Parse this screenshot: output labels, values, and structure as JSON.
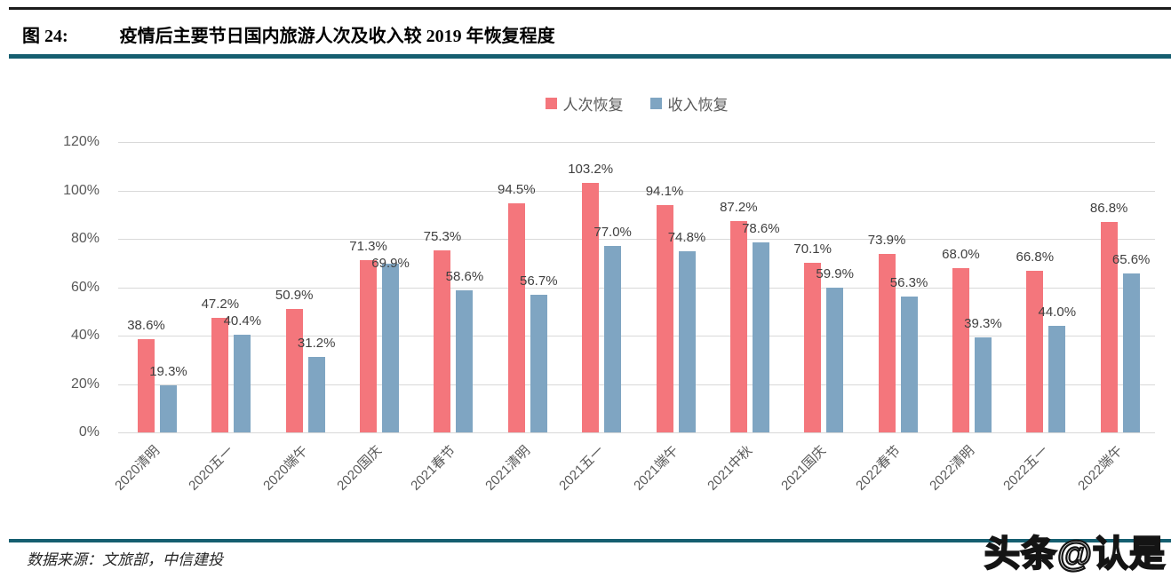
{
  "figure": {
    "label": "图 24:",
    "title": "疫情后主要节日国内旅游人次及收入较 2019 年恢复程度"
  },
  "source_text": "数据来源：文旅部，中信建投",
  "watermark_text": "头条@认是",
  "colors": {
    "series_passenger": "#f4767c",
    "series_revenue": "#7fa5c2",
    "rule_teal": "#155e70",
    "rule_top": "#1c1c1c",
    "grid": "#d9d9d9",
    "value_label": "#404040",
    "axis_label": "#595959"
  },
  "chart_data": {
    "type": "bar",
    "title": "疫情后主要节日国内旅游人次及收入较 2019 年恢复程度",
    "categories": [
      "2020清明",
      "2020五一",
      "2020端午",
      "2020国庆",
      "2021春节",
      "2021清明",
      "2021五一",
      "2021端午",
      "2021中秋",
      "2021国庆",
      "2022春节",
      "2022清明",
      "2022五一",
      "2022端午"
    ],
    "series": [
      {
        "name": "人次恢复",
        "color_key": "series_passenger",
        "values": [
          38.6,
          47.2,
          50.9,
          71.3,
          75.3,
          94.5,
          103.2,
          94.1,
          87.2,
          70.1,
          73.9,
          68.0,
          66.8,
          86.8
        ]
      },
      {
        "name": "收入恢复",
        "color_key": "series_revenue",
        "values": [
          19.3,
          40.4,
          31.2,
          69.9,
          58.6,
          56.7,
          77.0,
          74.8,
          78.6,
          59.9,
          56.3,
          39.3,
          44.0,
          65.6
        ]
      }
    ],
    "xlabel": "",
    "ylabel": "",
    "ylim": [
      0,
      120
    ],
    "ytick_step": 20,
    "ytick_suffix": "%",
    "value_label_decimals": 1,
    "value_label_suffix": "%",
    "grid": true,
    "legend_position": "top"
  }
}
